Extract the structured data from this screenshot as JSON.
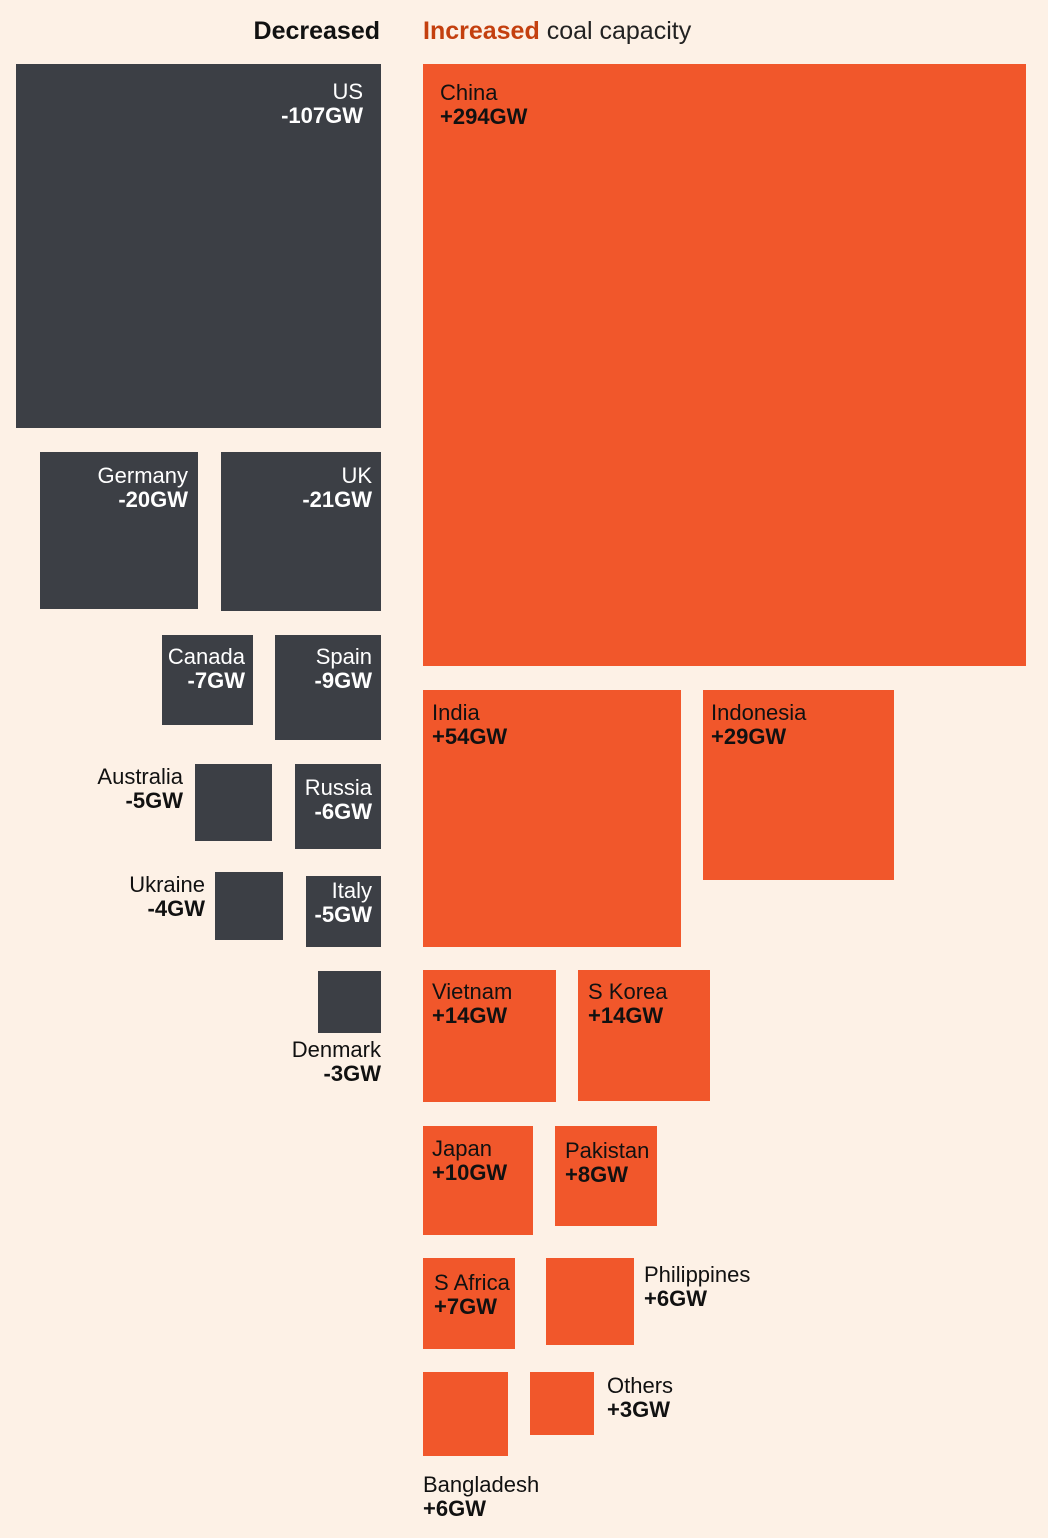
{
  "header": {
    "left": "Decreased",
    "right_accent": "Increased",
    "right_rest": " coal capacity"
  },
  "colors": {
    "background": "#fdf1e6",
    "decreased": "#3c3f45",
    "increased": "#f1572b",
    "increased_text": "#c4400f",
    "label_on_dark": "#ffffff",
    "label_on_light": "#111111"
  },
  "chart_data": {
    "type": "treemap",
    "unit": "GW",
    "groups": [
      {
        "name": "Decreased",
        "items": [
          {
            "name": "US",
            "value": -107,
            "label": "-107GW"
          },
          {
            "name": "Germany",
            "value": -20,
            "label": "-20GW"
          },
          {
            "name": "UK",
            "value": -21,
            "label": "-21GW"
          },
          {
            "name": "Canada",
            "value": -7,
            "label": "-7GW"
          },
          {
            "name": "Spain",
            "value": -9,
            "label": "-9GW"
          },
          {
            "name": "Australia",
            "value": -5,
            "label": "-5GW"
          },
          {
            "name": "Russia",
            "value": -6,
            "label": "-6GW"
          },
          {
            "name": "Ukraine",
            "value": -4,
            "label": "-4GW"
          },
          {
            "name": "Italy",
            "value": -5,
            "label": "-5GW"
          },
          {
            "name": "Denmark",
            "value": -3,
            "label": "-3GW"
          }
        ]
      },
      {
        "name": "Increased",
        "items": [
          {
            "name": "China",
            "value": 294,
            "label": "+294GW"
          },
          {
            "name": "India",
            "value": 54,
            "label": "+54GW"
          },
          {
            "name": "Indonesia",
            "value": 29,
            "label": "+29GW"
          },
          {
            "name": "Vietnam",
            "value": 14,
            "label": "+14GW"
          },
          {
            "name": "S Korea",
            "value": 14,
            "label": "+14GW"
          },
          {
            "name": "Japan",
            "value": 10,
            "label": "+10GW"
          },
          {
            "name": "Pakistan",
            "value": 8,
            "label": "+8GW"
          },
          {
            "name": "S Africa",
            "value": 7,
            "label": "+7GW"
          },
          {
            "name": "Philippines",
            "value": 6,
            "label": "+6GW"
          },
          {
            "name": "Bangladesh",
            "value": 6,
            "label": "+6GW"
          },
          {
            "name": "Others",
            "value": 3,
            "label": "+3GW"
          }
        ]
      }
    ]
  }
}
